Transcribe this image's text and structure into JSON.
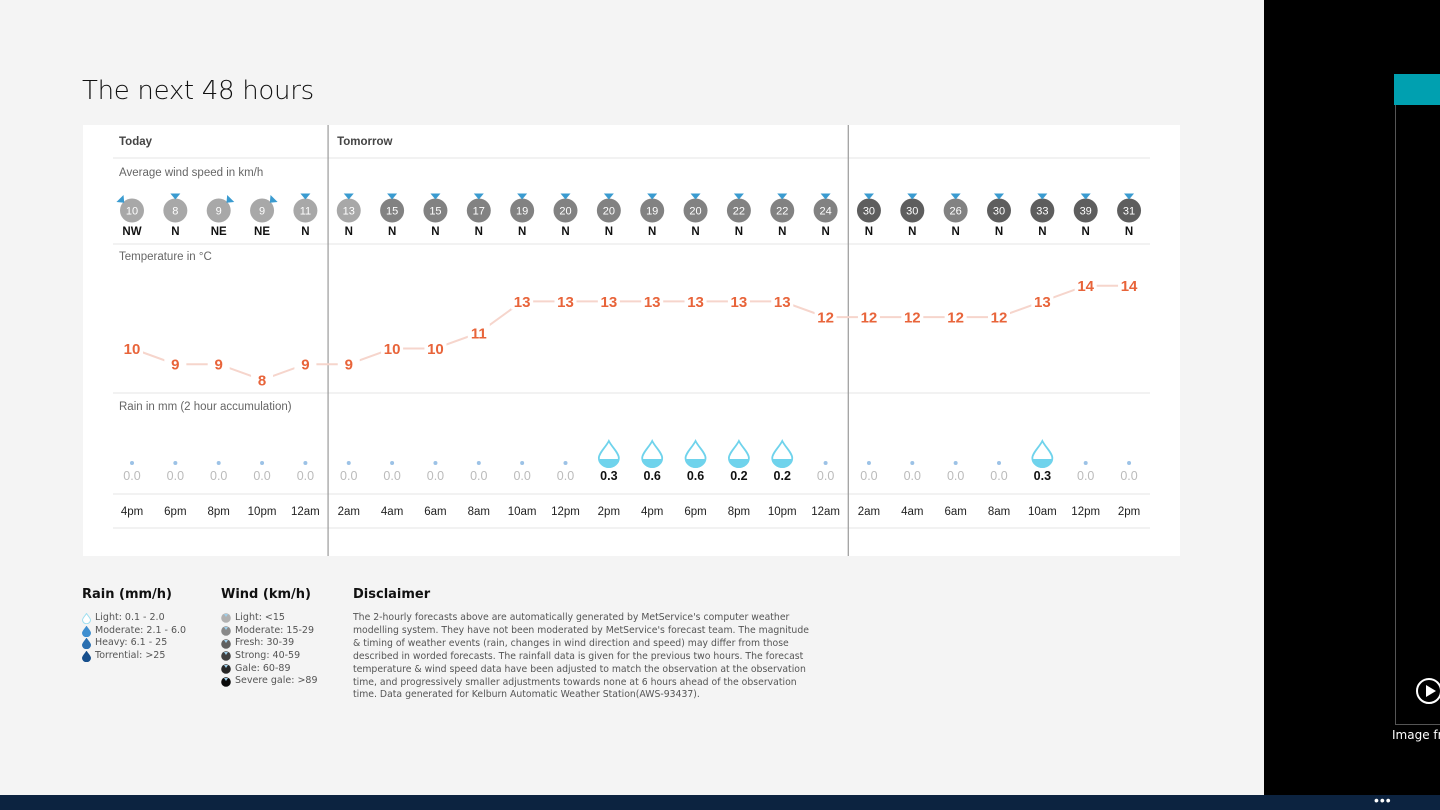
{
  "page": {
    "title": "The next 48 hours"
  },
  "chart_data": {
    "type": "table",
    "title": "The next 48 hours",
    "day_labels": [
      {
        "label": "Today",
        "start_index": 0
      },
      {
        "label": "Tomorrow",
        "start_index": 5
      },
      {
        "label": "",
        "start_index": 17
      }
    ],
    "wind_title": "Average wind speed in km/h",
    "temp_title": "Temperature in °C",
    "rain_title": "Rain in mm (2 hour accumulation)",
    "times": [
      "4pm",
      "6pm",
      "8pm",
      "10pm",
      "12am",
      "2am",
      "4am",
      "6am",
      "8am",
      "10am",
      "12pm",
      "2pm",
      "4pm",
      "6pm",
      "8pm",
      "10pm",
      "12am",
      "2am",
      "4am",
      "6am",
      "8am",
      "10am",
      "12pm",
      "2pm"
    ],
    "wind_speed": [
      10,
      8,
      9,
      9,
      11,
      13,
      15,
      15,
      17,
      19,
      20,
      20,
      19,
      20,
      22,
      22,
      24,
      30,
      30,
      26,
      30,
      33,
      39,
      31
    ],
    "wind_direction": [
      "NW",
      "N",
      "NE",
      "NE",
      "N",
      "N",
      "N",
      "N",
      "N",
      "N",
      "N",
      "N",
      "N",
      "N",
      "N",
      "N",
      "N",
      "N",
      "N",
      "N",
      "N",
      "N",
      "N",
      "N"
    ],
    "temperature": [
      10,
      9,
      9,
      8,
      9,
      9,
      10,
      10,
      11,
      13,
      13,
      13,
      13,
      13,
      13,
      13,
      12,
      12,
      12,
      12,
      12,
      13,
      14,
      14
    ],
    "rain": [
      "0.0",
      "0.0",
      "0.0",
      "0.0",
      "0.0",
      "0.0",
      "0.0",
      "0.0",
      "0.0",
      "0.0",
      "0.0",
      "0.3",
      "0.6",
      "0.6",
      "0.2",
      "0.2",
      "0.0",
      "0.0",
      "0.0",
      "0.0",
      "0.0",
      "0.3",
      "0.0",
      "0.0"
    ],
    "colors": {
      "temperature_text": "#e8643a",
      "temperature_line": "#f6d5cc",
      "wind_arrow": "#3a9bd0",
      "rain_drop": "#6fd3ec",
      "wind_light": "#a8a8a8",
      "wind_moderate": "#828282",
      "wind_fresh": "#5e5e5e"
    }
  },
  "legend": {
    "rain": {
      "title": "Rain (mm/h)",
      "items": [
        {
          "label": "Light: 0.1 - 2.0",
          "color": "#9fdff0"
        },
        {
          "label": "Moderate: 2.1 - 6.0",
          "color": "#3f8fd0"
        },
        {
          "label": "Heavy: 6.1 - 25",
          "color": "#2a6fb0"
        },
        {
          "label": "Torrential: >25",
          "color": "#174f8c"
        }
      ]
    },
    "wind": {
      "title": "Wind (km/h)",
      "items": [
        {
          "label": "Light: <15",
          "color": "#b0b0b0"
        },
        {
          "label": "Moderate: 15-29",
          "color": "#888888"
        },
        {
          "label": "Fresh: 30-39",
          "color": "#606060"
        },
        {
          "label": "Strong: 40-59",
          "color": "#404040"
        },
        {
          "label": "Gale: 60-89",
          "color": "#262626"
        },
        {
          "label": "Severe gale: >89",
          "color": "#0a0a0a"
        }
      ]
    }
  },
  "disclaimer": {
    "title": "Disclaimer",
    "text": "The 2-hourly forecasts above are automatically generated by MetService's computer weather modelling system. They have not been moderated by MetService's forecast team. The magnitude & timing of weather events (rain, changes in wind direction and speed) may differ from those described in worded forecasts. The rainfall data is given for the previous two hours. The forecast temperature & wind speed data have been adjusted to match the observation at the observation time, and progressively smaller adjustments towards none at 6 hours ahead of the observation time. Data generated for Kelburn Automatic Weather Station(AWS-93437)."
  },
  "side_panel": {
    "caption": "Image fr",
    "more_label": "•••"
  }
}
